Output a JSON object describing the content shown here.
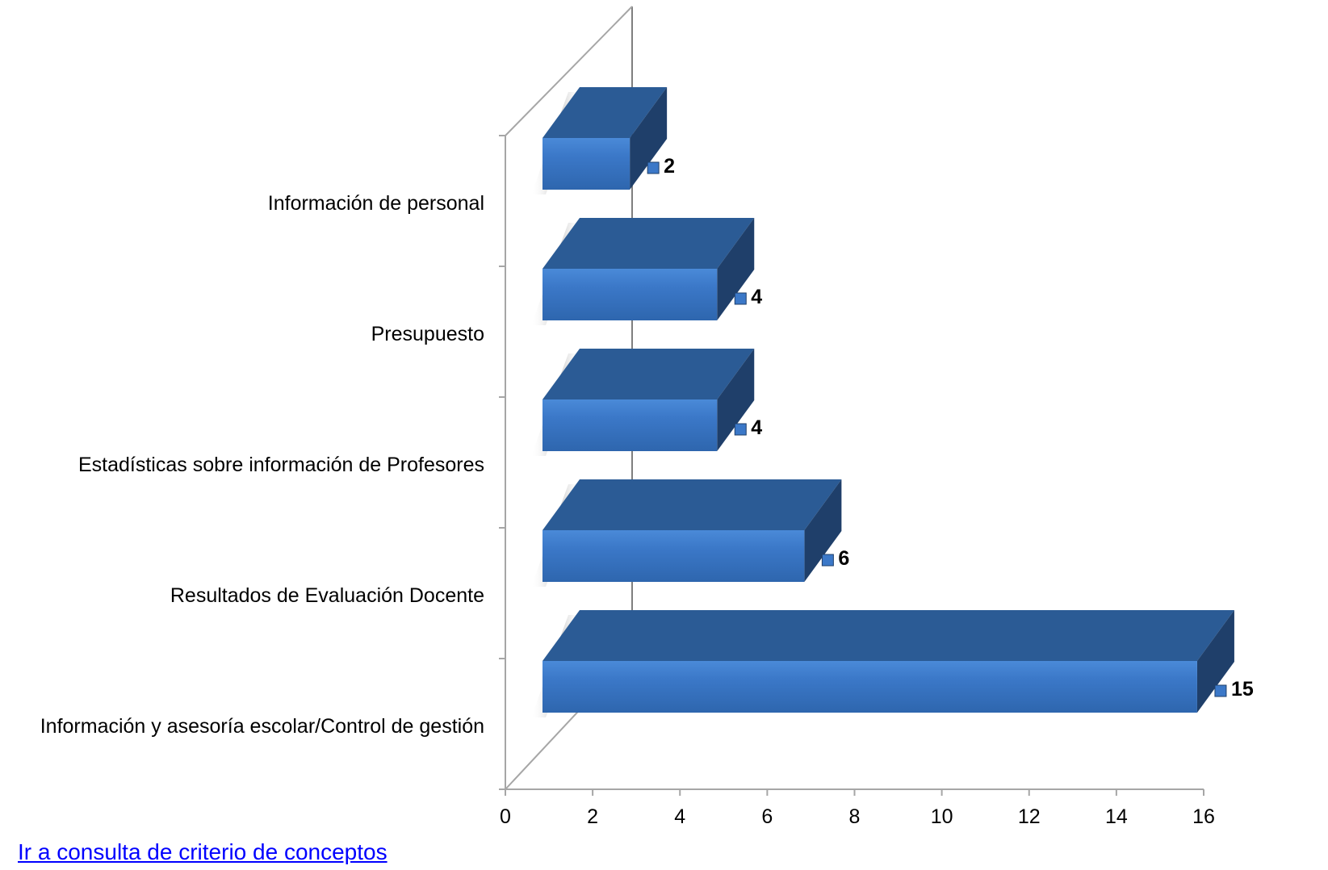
{
  "link": {
    "label": "Ir a consulta de criterio de conceptos"
  },
  "colors": {
    "bar_front": "#3b78c8",
    "bar_top": "#2b5b95",
    "bar_side": "#1f3f6a",
    "axis": "#a6a6a6",
    "link": "#0000ff"
  },
  "chart_data": {
    "type": "bar",
    "orientation": "horizontal",
    "style": "3d",
    "categories": [
      "Información de personal",
      "Presupuesto",
      "Estadísticas sobre información de Profesores",
      "Resultados de Evaluación Docente",
      "Información y asesoría escolar/Control de gestión"
    ],
    "values": [
      2,
      4,
      4,
      6,
      15
    ],
    "data_labels": [
      "2",
      "4",
      "4",
      "6",
      "15"
    ],
    "xlim": [
      0,
      16
    ],
    "x_ticks": [
      0,
      2,
      4,
      6,
      8,
      10,
      12,
      14,
      16
    ],
    "x_tick_labels": [
      "0",
      "2",
      "4",
      "6",
      "8",
      "10",
      "12",
      "14",
      "16"
    ],
    "title": "",
    "xlabel": "",
    "ylabel": "",
    "grid": false,
    "legend": "none"
  }
}
